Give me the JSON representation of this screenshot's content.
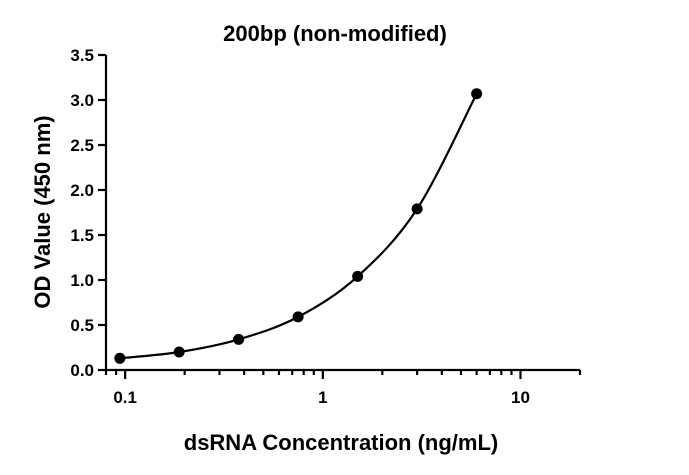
{
  "chart_data": {
    "type": "scatter",
    "title": "200bp (non-modified)",
    "xlabel": "dsRNA Concentration (ng/mL)",
    "ylabel": "OD Value (450 nm)",
    "x_scale": "log",
    "xlim": [
      0.08,
      20
    ],
    "ylim": [
      0,
      3.5
    ],
    "x_ticks": [
      0.1,
      1,
      10
    ],
    "x_tick_labels": [
      "0.1",
      "1",
      "10"
    ],
    "y_ticks": [
      0,
      0.5,
      1,
      1.5,
      2,
      2.5,
      3,
      3.5
    ],
    "y_tick_labels": [
      "0.0",
      "0.5",
      "1.0",
      "1.5",
      "2.0",
      "2.5",
      "3.0",
      "3.5"
    ],
    "grid": false,
    "legend": false,
    "fit_curve": true,
    "series": [
      {
        "x": [
          0.094,
          0.1875,
          0.375,
          0.75,
          1.5,
          3,
          6
        ],
        "y": [
          0.13,
          0.2,
          0.34,
          0.59,
          1.04,
          1.79,
          3.07
        ]
      }
    ],
    "colors": {
      "marker": "#000000",
      "line": "#000000",
      "axis": "#000000"
    }
  }
}
